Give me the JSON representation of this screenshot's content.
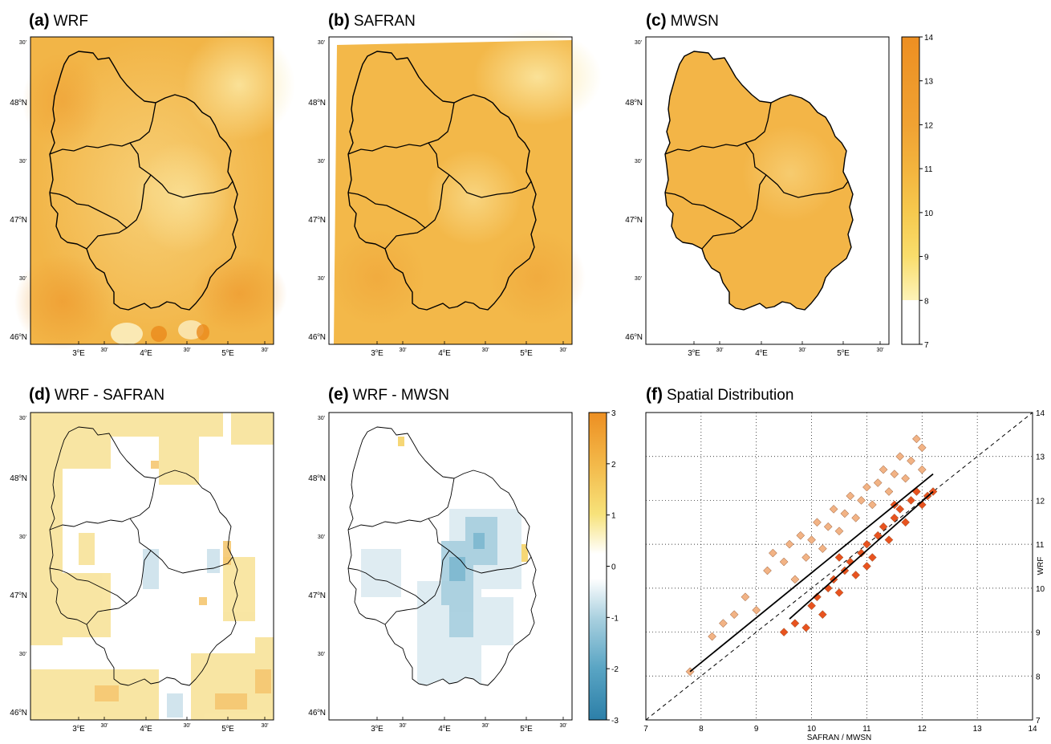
{
  "panels": [
    {
      "id": "a",
      "tag": "(a)",
      "label": "WRF"
    },
    {
      "id": "b",
      "tag": "(b)",
      "label": "SAFRAN"
    },
    {
      "id": "c",
      "tag": "(c)",
      "label": "MWSN"
    },
    {
      "id": "d",
      "tag": "(d)",
      "label": "WRF - SAFRAN"
    },
    {
      "id": "e",
      "tag": "(e)",
      "label": "WRF - MWSN"
    },
    {
      "id": "f",
      "tag": "(f)",
      "label": "Spatial Distribution"
    }
  ],
  "map_axes": {
    "lat_labels": [
      {
        "deg": "46",
        "min": false
      },
      {
        "deg": "",
        "min": true
      },
      {
        "deg": "47",
        "min": false
      },
      {
        "deg": "",
        "min": true
      },
      {
        "deg": "48",
        "min": false
      },
      {
        "deg": "",
        "min": true
      }
    ],
    "lat_suffix": "N",
    "lon_labels": [
      {
        "deg": "3",
        "min": false
      },
      {
        "deg": "",
        "min": true
      },
      {
        "deg": "4",
        "min": false
      },
      {
        "deg": "",
        "min": true
      },
      {
        "deg": "5",
        "min": false
      },
      {
        "deg": "",
        "min": true
      }
    ],
    "lon_suffix": "E",
    "minute_text": "30'",
    "degree_mark": "o"
  },
  "colorbar_abs": {
    "ticks": [
      "14",
      "13",
      "12",
      "11",
      "10",
      "9",
      "8",
      "7"
    ],
    "range": [
      7,
      14
    ],
    "colors": [
      "#ffffff",
      "#fdf3b8",
      "#f9dd6c",
      "#f6c94e",
      "#f3b43e",
      "#f0a233",
      "#ed8f22"
    ]
  },
  "colorbar_diff": {
    "ticks": [
      "3",
      "2",
      "1",
      "0",
      "-1",
      "-2",
      "-3"
    ],
    "range": [
      -3,
      3
    ]
  },
  "chart_data": {
    "type": "scatter",
    "title": "Spatial Distribution",
    "xlabel": "SAFRAN / MWSN",
    "ylabel": "WRF",
    "xlim": [
      7,
      14
    ],
    "ylim": [
      7,
      14
    ],
    "xticks": [
      "7",
      "8",
      "9",
      "10",
      "11",
      "12",
      "13",
      "14"
    ],
    "yticks": [
      "7",
      "8",
      "9",
      "10",
      "11",
      "12",
      "13",
      "14"
    ],
    "grid": true,
    "reference_line": "1:1",
    "series": [
      {
        "color": "#f2b385",
        "marker": "diamond",
        "points": [
          [
            7.8,
            8.1
          ],
          [
            8.2,
            8.9
          ],
          [
            8.4,
            9.2
          ],
          [
            8.6,
            9.4
          ],
          [
            8.8,
            9.8
          ],
          [
            9.0,
            9.5
          ],
          [
            9.2,
            10.4
          ],
          [
            9.3,
            10.8
          ],
          [
            9.5,
            10.6
          ],
          [
            9.6,
            11.0
          ],
          [
            9.7,
            10.2
          ],
          [
            9.8,
            11.2
          ],
          [
            9.9,
            10.7
          ],
          [
            10.0,
            11.1
          ],
          [
            10.1,
            11.5
          ],
          [
            10.2,
            10.9
          ],
          [
            10.3,
            11.4
          ],
          [
            10.4,
            11.8
          ],
          [
            10.5,
            11.3
          ],
          [
            10.6,
            11.7
          ],
          [
            10.7,
            12.1
          ],
          [
            10.8,
            11.6
          ],
          [
            10.9,
            12.0
          ],
          [
            11.0,
            12.3
          ],
          [
            11.1,
            11.9
          ],
          [
            11.2,
            12.4
          ],
          [
            11.3,
            12.7
          ],
          [
            11.4,
            12.2
          ],
          [
            11.5,
            12.6
          ],
          [
            11.6,
            13.0
          ],
          [
            11.7,
            12.5
          ],
          [
            11.8,
            12.9
          ],
          [
            11.9,
            13.4
          ],
          [
            12.0,
            12.7
          ],
          [
            12.0,
            13.2
          ]
        ],
        "fit": [
          [
            7.8,
            8.1
          ],
          [
            12.2,
            12.6
          ]
        ]
      },
      {
        "color": "#e8531f",
        "marker": "diamond",
        "points": [
          [
            9.5,
            9.0
          ],
          [
            9.7,
            9.2
          ],
          [
            9.9,
            9.1
          ],
          [
            10.0,
            9.6
          ],
          [
            10.1,
            9.8
          ],
          [
            10.2,
            9.4
          ],
          [
            10.3,
            10.0
          ],
          [
            10.4,
            10.2
          ],
          [
            10.5,
            9.9
          ],
          [
            10.6,
            10.4
          ],
          [
            10.7,
            10.6
          ],
          [
            10.8,
            10.3
          ],
          [
            10.9,
            10.8
          ],
          [
            11.0,
            11.0
          ],
          [
            11.1,
            10.7
          ],
          [
            11.2,
            11.2
          ],
          [
            11.3,
            11.4
          ],
          [
            11.4,
            11.1
          ],
          [
            11.5,
            11.6
          ],
          [
            11.6,
            11.8
          ],
          [
            11.7,
            11.5
          ],
          [
            11.8,
            12.0
          ],
          [
            11.9,
            12.2
          ],
          [
            12.0,
            11.9
          ],
          [
            12.1,
            12.1
          ],
          [
            12.2,
            12.2
          ],
          [
            11.0,
            10.5
          ],
          [
            10.5,
            10.7
          ],
          [
            11.5,
            11.9
          ]
        ],
        "fit": [
          [
            9.6,
            9.3
          ],
          [
            12.2,
            12.2
          ]
        ]
      }
    ]
  }
}
